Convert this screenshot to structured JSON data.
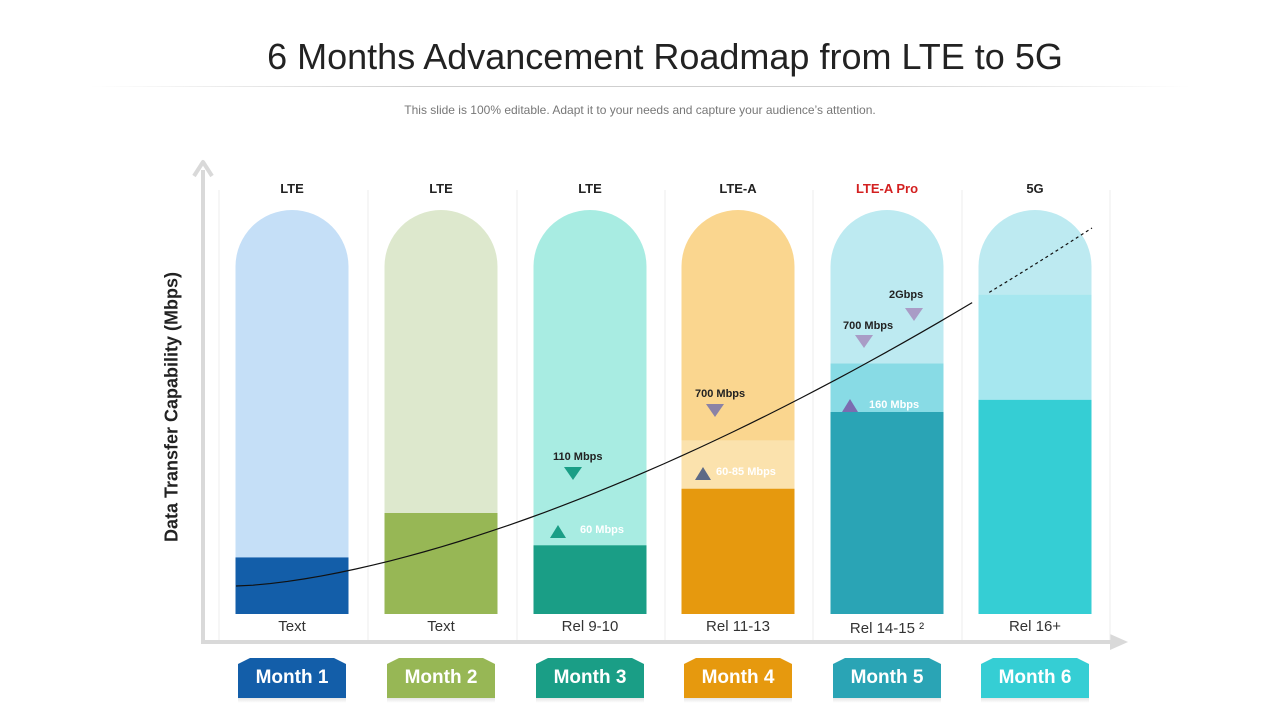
{
  "header": {
    "title": "6 Months Advancement Roadmap from LTE to 5G",
    "subtitle": "This slide is 100% editable. Adapt it to your needs and capture your audience’s attention."
  },
  "axis": {
    "ylabel": "Data Transfer Capability (Mbps)"
  },
  "columns": [
    {
      "generation": "LTE",
      "release": "Text",
      "month": "Month 1",
      "light_color": "#c5dff7",
      "dark_color": "#135ea9",
      "dark_fill": 0.14
    },
    {
      "generation": "LTE",
      "release": "Text",
      "month": "Month 2",
      "light_color": "#dde8cd",
      "dark_color": "#97b755",
      "dark_fill": 0.25
    },
    {
      "generation": "LTE",
      "release": "Rel 9-10",
      "month": "Month 3",
      "light_color": "#a8ece2",
      "dark_color": "#1a9e86",
      "dark_fill": 0.17,
      "mid_color": "#a8ece2"
    },
    {
      "generation": "LTE-A",
      "release": "Rel 11-13",
      "month": "Month 4",
      "light_color": "#fad68f",
      "dark_color": "#e6990e",
      "mid_color": "#fbe2ad",
      "mid_fill": 0.43,
      "dark_fill": 0.31
    },
    {
      "generation": "LTE-A Pro",
      "release": "Rel 14-15 ²",
      "month": "Month 5",
      "light_color": "#bdeaf1",
      "dark_color": "#2aa4b5",
      "mid_color": "#88dbe5",
      "mid_fill": 0.62,
      "dark_fill": 0.5,
      "highlight": true
    },
    {
      "generation": "5G",
      "release": "Rel 16+",
      "month": "Month 6",
      "light_color": "#bdeaf1",
      "dark_color": "#35ced4",
      "mid_color": "#a6e7ef",
      "mid_fill": 0.79,
      "dark_fill": 0.53
    }
  ],
  "markers": [
    {
      "label": "60 Mbps",
      "column": 2,
      "direction": "up",
      "color": "#1a9e86",
      "label_color": "#ffffff"
    },
    {
      "label": "110 Mbps",
      "column": 2,
      "direction": "down",
      "color": "#1a9e86",
      "label_color": "#222222"
    },
    {
      "label": "60-85 Mbps",
      "column": 3,
      "direction": "up",
      "color": "#5d6a86",
      "label_color": "#ffffff"
    },
    {
      "label": "700 Mbps",
      "column": 3,
      "direction": "down",
      "color": "#8a82a6",
      "label_color": "#222222"
    },
    {
      "label": "160 Mbps",
      "column": 4,
      "direction": "up",
      "color": "#7b6cb0",
      "label_color": "#ffffff"
    },
    {
      "label": "700 Mbps",
      "column": 4,
      "direction": "down",
      "color": "#a99cc6",
      "label_color": "#222222"
    },
    {
      "label": "2Gbps",
      "column": 4,
      "direction": "down",
      "color": "#a99cc6",
      "label_color": "#222222"
    }
  ],
  "trend": {
    "style": "solid-then-dashed"
  }
}
